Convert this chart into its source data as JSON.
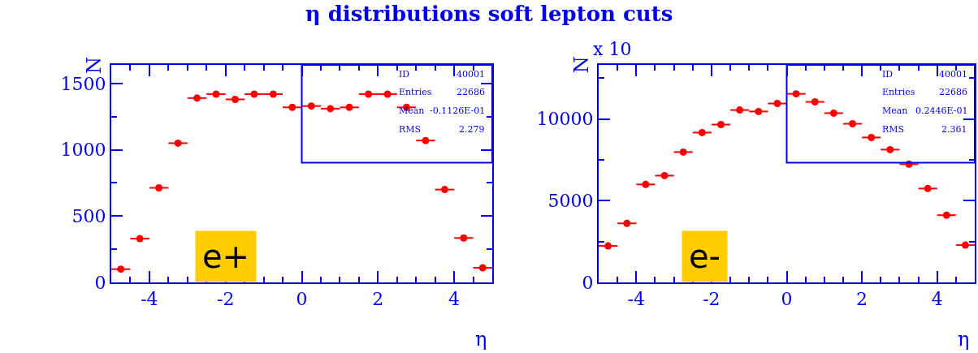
{
  "chart_data": [
    {
      "type": "scatter",
      "title": "η distributions soft lepton cuts",
      "xlabel": "η",
      "ylabel": "N",
      "marker": "circle",
      "grid": false,
      "legend": false,
      "x": [
        -4.75,
        -4.25,
        -3.75,
        -3.25,
        -2.75,
        -2.25,
        -1.75,
        -1.25,
        -0.75,
        -0.25,
        0.25,
        0.75,
        1.25,
        1.75,
        2.25,
        2.75,
        3.25,
        3.75,
        4.25,
        4.75
      ],
      "series": [
        {
          "color": "#ff0000",
          "values": [
            100,
            330,
            713,
            1050,
            1390,
            1420,
            1380,
            1420,
            1420,
            1320,
            1330,
            1310,
            1320,
            1420,
            1420,
            1320,
            1070,
            700,
            335,
            110
          ],
          "xerrors": [
            0.25,
            0.25,
            0.25,
            0.25,
            0.25,
            0.25,
            0.25,
            0.25,
            0.25,
            0.25,
            0.25,
            0.25,
            0.25,
            0.25,
            0.25,
            0.25,
            0.25,
            0.25,
            0.25,
            0.25
          ]
        }
      ],
      "xlim": [
        -5,
        5
      ],
      "xticks": [
        -4,
        -2,
        0,
        2,
        4
      ],
      "ylim": [
        0,
        1640
      ],
      "yticks": [
        0,
        500,
        1000,
        1500
      ],
      "annotations": [
        "ID",
        "40001",
        "Entries",
        "22686",
        "Mean",
        "-0.1126E-01",
        "RMS",
        "2.279",
        "e+"
      ]
    },
    {
      "type": "scatter",
      "xlabel": "η",
      "ylabel": "N",
      "marker": "circle",
      "grid": false,
      "legend": false,
      "x": [
        -4.75,
        -4.25,
        -3.75,
        -3.25,
        -2.75,
        -2.25,
        -1.75,
        -1.25,
        -0.75,
        -0.25,
        0.25,
        0.75,
        1.25,
        1.75,
        2.25,
        2.75,
        3.25,
        3.75,
        4.25,
        4.75
      ],
      "series": [
        {
          "color": "#ff0000",
          "values": [
            2230,
            3610,
            5990,
            6530,
            7970,
            9160,
            9650,
            10540,
            10450,
            10940,
            11530,
            11040,
            10350,
            9700,
            8860,
            8120,
            7230,
            5740,
            4110,
            2280
          ],
          "xerrors": [
            0.25,
            0.25,
            0.25,
            0.25,
            0.25,
            0.25,
            0.25,
            0.25,
            0.25,
            0.25,
            0.25,
            0.25,
            0.25,
            0.25,
            0.25,
            0.25,
            0.25,
            0.25,
            0.25,
            0.25
          ]
        }
      ],
      "xlim": [
        -5,
        5
      ],
      "xticks": [
        -4,
        -2,
        0,
        2,
        4
      ],
      "ylim": [
        0,
        13300
      ],
      "yticks": [
        0,
        5000,
        10000
      ],
      "annotations": [
        "ID",
        "40001",
        "Entries",
        "22686",
        "Mean",
        "0.2446E-01",
        "RMS",
        "2.361",
        "e-",
        "x 10"
      ]
    }
  ]
}
